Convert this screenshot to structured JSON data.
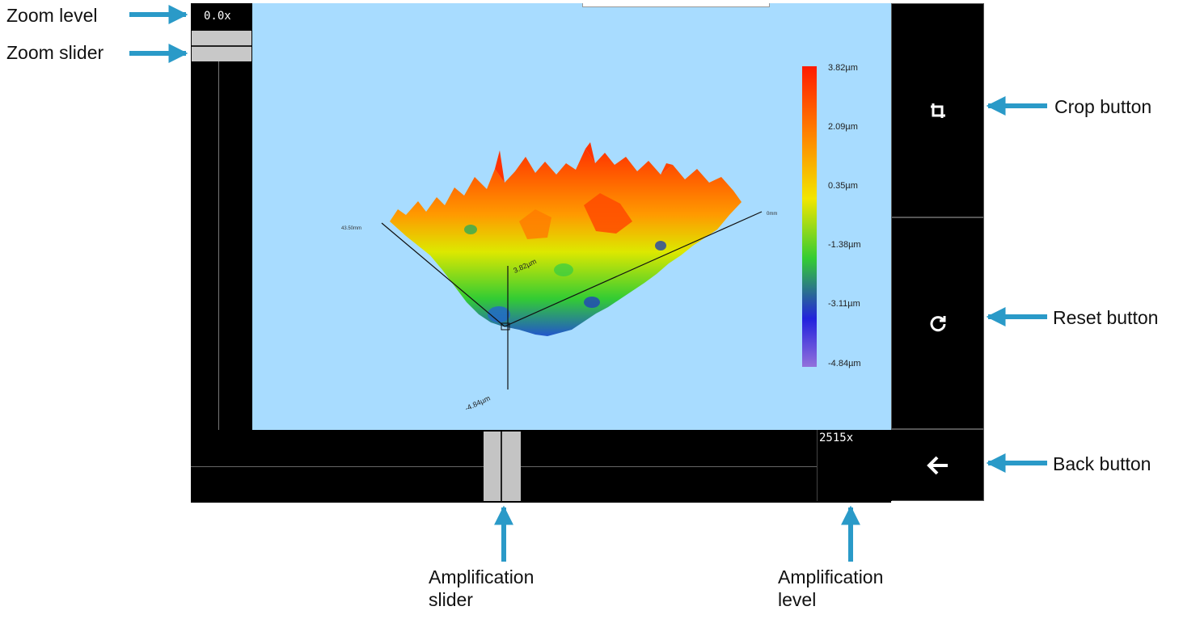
{
  "zoom": {
    "level": "0.0x"
  },
  "amplification": {
    "level": "2515x",
    "slider_fraction": 0.47
  },
  "legend": {
    "labels": [
      "3.82µm",
      "2.09µm",
      "0.35µm",
      "-1.38µm",
      "-3.11µm",
      "-4.84µm"
    ],
    "colors": [
      "#ff1a00",
      "#ff8000",
      "#f2e600",
      "#33cc33",
      "#2222dd",
      "#9370db"
    ]
  },
  "plot": {
    "background": "#a8dcff",
    "axis_top_label": "3.82µm",
    "axis_bottom_label": "-4.84µm"
  },
  "buttons": {
    "crop_icon": "crop-icon",
    "reset_icon": "reset-icon",
    "back_icon": "arrow-left-icon"
  },
  "annotations": {
    "zoom_level": "Zoom level",
    "zoom_slider": "Zoom slider",
    "crop_button": "Crop button",
    "reset_button": "Reset button",
    "back_button": "Back button",
    "amp_slider_line1": "Amplification",
    "amp_slider_line2": "slider",
    "amp_level_line1": "Amplification",
    "amp_level_line2": "level"
  },
  "accent": "#2a9ac8"
}
